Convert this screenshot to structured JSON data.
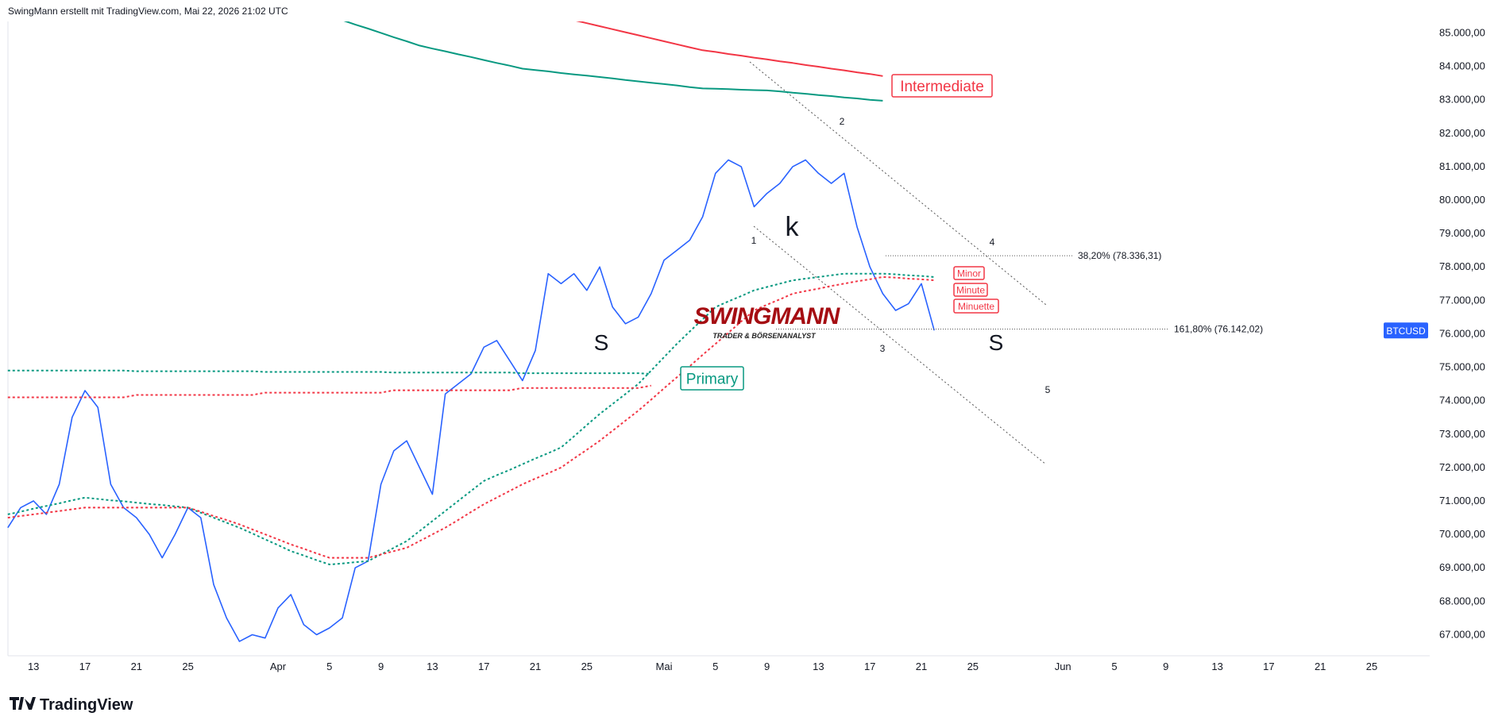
{
  "header": "SwingMann erstellt mit TradingView.com, Mai 22, 2026 21:02 UTC",
  "footer": "TradingView",
  "chart_data": {
    "type": "line",
    "categories": [
      null,
      null,
      "13",
      null,
      null,
      null,
      "17",
      null,
      null,
      null,
      "21",
      null,
      null,
      null,
      "25",
      null,
      null,
      null,
      null,
      null,
      null,
      "Apr",
      null,
      null,
      null,
      "5",
      null,
      null,
      null,
      "9",
      null,
      null,
      null,
      "13",
      null,
      null,
      null,
      "17",
      null,
      null,
      null,
      "21",
      null,
      null,
      null,
      "25",
      null,
      null,
      null,
      null,
      null,
      "Mai",
      null,
      null,
      null,
      "5",
      null,
      null,
      null,
      "9",
      null,
      null,
      null,
      "13",
      null,
      null,
      null,
      "17",
      null,
      null,
      null,
      "21",
      null,
      null,
      null,
      "25",
      null,
      null,
      null,
      null,
      null,
      null,
      "Jun",
      null,
      null,
      null,
      "5",
      null,
      null,
      null,
      "9",
      null,
      null,
      null,
      "13",
      null,
      null,
      null,
      "17",
      null,
      null,
      null,
      "21",
      null,
      null,
      null,
      "25",
      null,
      null,
      null
    ],
    "series": [
      {
        "name": "BTCUSD",
        "color": "#2962ff",
        "width": 1.6,
        "dash": false,
        "values": [
          70200,
          70800,
          71000,
          70600,
          71500,
          73500,
          74300,
          73800,
          71500,
          70800,
          70500,
          70000,
          69300,
          70000,
          70800,
          70500,
          68500,
          67500,
          66800,
          67000,
          66900,
          67800,
          68200,
          67300,
          67000,
          67200,
          67500,
          69000,
          69200,
          71500,
          72500,
          72800,
          72000,
          71200,
          74200,
          74500,
          74800,
          75600,
          75800,
          75200,
          74600,
          75500,
          77800,
          77500,
          77800,
          77300,
          78000,
          76800,
          76300,
          76500,
          77200,
          78200,
          78500,
          78800,
          79500,
          80800,
          81200,
          81000,
          79800,
          80200,
          80500,
          81000,
          81200,
          80800,
          80500,
          80800,
          79200,
          78000,
          77200,
          76700,
          76900,
          77500,
          76100,
          null,
          null,
          null,
          null,
          null,
          null,
          null,
          null,
          null,
          null,
          null,
          null,
          null,
          null,
          null,
          null,
          null,
          null,
          null,
          null,
          null,
          null,
          null,
          null,
          null,
          null,
          null,
          null,
          null,
          null,
          null,
          null,
          null,
          null,
          null,
          null,
          null
        ]
      },
      {
        "color": "#089981",
        "width": 2,
        "dash": true,
        "values": [
          70600,
          70680,
          70770,
          70850,
          70930,
          71020,
          71100,
          71060,
          71020,
          70990,
          70950,
          70910,
          70880,
          70840,
          70800,
          70650,
          70500,
          70350,
          70200,
          70030,
          69850,
          69680,
          69500,
          69370,
          69230,
          69100,
          69130,
          69170,
          69200,
          69400,
          69600,
          69800,
          70100,
          70400,
          70700,
          71000,
          71300,
          71600,
          71770,
          71930,
          72100,
          72270,
          72430,
          72600,
          72930,
          73270,
          73600,
          73900,
          74200,
          74500,
          74900,
          75300,
          75700,
          76070,
          76430,
          76800,
          76970,
          77130,
          77300,
          77400,
          77500,
          77600,
          77650,
          77700,
          77750,
          77800,
          77800,
          77800,
          77800,
          77780,
          77750,
          77730,
          77700,
          null,
          null,
          null,
          null,
          null,
          null,
          null,
          null,
          null,
          null,
          null,
          null,
          null,
          null,
          null,
          null,
          null,
          null,
          null,
          null,
          null,
          null,
          null,
          null,
          null,
          null,
          null,
          null,
          null,
          null,
          null,
          null,
          null,
          null,
          null,
          null,
          null
        ]
      },
      {
        "color": "#f23645",
        "width": 2,
        "dash": true,
        "values": [
          70500,
          70550,
          70600,
          70650,
          70700,
          70750,
          70800,
          70800,
          70800,
          70800,
          70800,
          70800,
          70800,
          70800,
          70800,
          70680,
          70550,
          70430,
          70300,
          70150,
          70000,
          69850,
          69700,
          69570,
          69430,
          69300,
          69300,
          69300,
          69300,
          69400,
          69500,
          69600,
          69800,
          70000,
          70200,
          70430,
          70670,
          70900,
          71100,
          71300,
          71500,
          71670,
          71830,
          72000,
          72270,
          72530,
          72800,
          73100,
          73400,
          73700,
          74030,
          74370,
          74700,
          75030,
          75370,
          75700,
          76030,
          76370,
          76700,
          76870,
          77030,
          77200,
          77280,
          77350,
          77430,
          77500,
          77570,
          77630,
          77700,
          77680,
          77650,
          77630,
          77600,
          null,
          null,
          null,
          null,
          null,
          null,
          null,
          null,
          null,
          null,
          null,
          null,
          null,
          null,
          null,
          null,
          null,
          null,
          null,
          null,
          null,
          null,
          null,
          null,
          null,
          null,
          null,
          null,
          null,
          null,
          null,
          null,
          null,
          null,
          null,
          null,
          null
        ]
      },
      {
        "color": "#089981",
        "width": 2,
        "dash": false,
        "values": [
          null,
          null,
          null,
          null,
          null,
          null,
          null,
          null,
          null,
          null,
          null,
          null,
          null,
          null,
          null,
          null,
          null,
          null,
          null,
          null,
          null,
          null,
          null,
          null,
          null,
          null,
          85380,
          85250,
          85130,
          85000,
          84870,
          84750,
          84620,
          84530,
          84450,
          84360,
          84280,
          84190,
          84100,
          84020,
          83930,
          83890,
          83850,
          83800,
          83760,
          83720,
          83680,
          83640,
          83590,
          83550,
          83510,
          83470,
          83430,
          83380,
          83340,
          83330,
          83320,
          83300,
          83290,
          83280,
          83250,
          83210,
          83180,
          83140,
          83110,
          83070,
          83040,
          83000,
          82970,
          null,
          null,
          null,
          null,
          null,
          null,
          null,
          null,
          null,
          null,
          null,
          null,
          null,
          null,
          null,
          null,
          null,
          null,
          null,
          null,
          null,
          null,
          null,
          null,
          null,
          null,
          null,
          null,
          null,
          null,
          null,
          null,
          null,
          null,
          null,
          null,
          null,
          null,
          null,
          null,
          null
        ]
      },
      {
        "color": "#f23645",
        "width": 2,
        "dash": false,
        "values": [
          null,
          null,
          null,
          null,
          null,
          null,
          null,
          null,
          null,
          null,
          null,
          null,
          null,
          null,
          null,
          null,
          null,
          null,
          null,
          null,
          null,
          null,
          null,
          null,
          null,
          null,
          null,
          null,
          null,
          null,
          null,
          null,
          null,
          null,
          null,
          null,
          null,
          null,
          null,
          null,
          null,
          null,
          null,
          null,
          85380,
          85290,
          85200,
          85110,
          85020,
          84930,
          84840,
          84750,
          84660,
          84570,
          84480,
          84430,
          84370,
          84320,
          84260,
          84210,
          84150,
          84100,
          84040,
          83990,
          83930,
          83880,
          83820,
          83770,
          83710,
          null,
          null,
          null,
          null,
          null,
          null,
          null,
          null,
          null,
          null,
          null,
          null,
          null,
          null,
          null,
          null,
          null,
          null,
          null,
          null,
          null,
          null,
          null,
          null,
          null,
          null,
          null,
          null,
          null,
          null,
          null,
          null,
          null,
          null,
          null,
          null,
          null,
          null,
          null,
          null,
          null
        ]
      },
      {
        "color": "#089981",
        "width": 2,
        "dash": true,
        "values": [
          74900,
          74900,
          74900,
          74900,
          74900,
          74900,
          74900,
          74900,
          74900,
          74900,
          74880,
          74880,
          74880,
          74880,
          74880,
          74880,
          74880,
          74880,
          74880,
          74880,
          74860,
          74860,
          74860,
          74860,
          74860,
          74860,
          74860,
          74860,
          74860,
          74860,
          74840,
          74840,
          74840,
          74840,
          74840,
          74840,
          74840,
          74840,
          74840,
          74840,
          74820,
          74820,
          74820,
          74820,
          74820,
          74820,
          74820,
          74820,
          74820,
          74820,
          74800,
          null,
          null,
          null,
          null,
          null,
          null,
          null,
          null,
          null,
          null,
          null,
          null,
          null,
          null,
          null,
          null,
          null,
          null,
          null,
          null,
          null,
          null,
          null,
          null,
          null,
          null,
          null,
          null,
          null,
          null,
          null,
          null,
          null,
          null,
          null,
          null,
          null,
          null,
          null,
          null,
          null,
          null,
          null,
          null,
          null,
          null,
          null,
          null,
          null,
          null,
          null,
          null,
          null,
          null,
          null,
          null,
          null,
          null,
          null
        ]
      },
      {
        "color": "#f23645",
        "width": 2,
        "dash": true,
        "values": [
          74100,
          74100,
          74100,
          74100,
          74100,
          74100,
          74100,
          74100,
          74100,
          74100,
          74170,
          74170,
          74170,
          74170,
          74170,
          74170,
          74170,
          74170,
          74170,
          74170,
          74240,
          74240,
          74240,
          74240,
          74240,
          74240,
          74240,
          74240,
          74240,
          74240,
          74310,
          74310,
          74310,
          74310,
          74310,
          74310,
          74310,
          74310,
          74310,
          74310,
          74380,
          74380,
          74380,
          74380,
          74380,
          74380,
          74380,
          74380,
          74380,
          74380,
          74450,
          null,
          null,
          null,
          null,
          null,
          null,
          null,
          null,
          null,
          null,
          null,
          null,
          null,
          null,
          null,
          null,
          null,
          null,
          null,
          null,
          null,
          null,
          null,
          null,
          null,
          null,
          null,
          null,
          null,
          null,
          null,
          null,
          null,
          null,
          null,
          null,
          null,
          null,
          null,
          null,
          null,
          null,
          null,
          null,
          null,
          null,
          null,
          null,
          null,
          null,
          null,
          null,
          null,
          null,
          null,
          null,
          null,
          null,
          null
        ]
      }
    ],
    "ylim": [
      66370,
      85343
    ],
    "yticks": [
      {
        "value": 67000,
        "label": "67.000,00"
      },
      {
        "value": 68000,
        "label": "68.000,00"
      },
      {
        "value": 69000,
        "label": "69.000,00"
      },
      {
        "value": 70000,
        "label": "70.000,00"
      },
      {
        "value": 71000,
        "label": "71.000,00"
      },
      {
        "value": 72000,
        "label": "72.000,00"
      },
      {
        "value": 73000,
        "label": "73.000,00"
      },
      {
        "value": 74000,
        "label": "74.000,00"
      },
      {
        "value": 75000,
        "label": "75.000,00"
      },
      {
        "value": 76000,
        "label": "76.000,00"
      },
      {
        "value": 77000,
        "label": "77.000,00"
      },
      {
        "value": 78000,
        "label": "78.000,00"
      },
      {
        "value": 79000,
        "label": "79.000,00"
      },
      {
        "value": 80000,
        "label": "80.000,00"
      },
      {
        "value": 81000,
        "label": "81.000,00"
      },
      {
        "value": 82000,
        "label": "82.000,00"
      },
      {
        "value": 83000,
        "label": "83.000,00"
      },
      {
        "value": 84000,
        "label": "84.000,00"
      },
      {
        "value": 85000,
        "label": "85.000,00"
      }
    ],
    "grid": false,
    "fib_levels": [
      {
        "label": "38,20% (78.336,31)",
        "value": 78336.31
      },
      {
        "label": "161,80% (76.142,02)",
        "value": 76142.02
      }
    ],
    "boxed_labels": [
      {
        "text": "Intermediate",
        "color": "#f23645"
      },
      {
        "text": "Primary",
        "color": "#089981"
      },
      {
        "text": "Minor",
        "color": "#f23645"
      },
      {
        "text": "Minute",
        "color": "#f23645"
      },
      {
        "text": "Minuette",
        "color": "#f23645"
      }
    ],
    "annotations": [
      "S",
      "k",
      "S",
      "1",
      "2",
      "3",
      "4",
      "5"
    ],
    "watermark": {
      "title": "SWINGMANN",
      "subtitle": "TRADER & BÖRSENANALYST"
    }
  }
}
